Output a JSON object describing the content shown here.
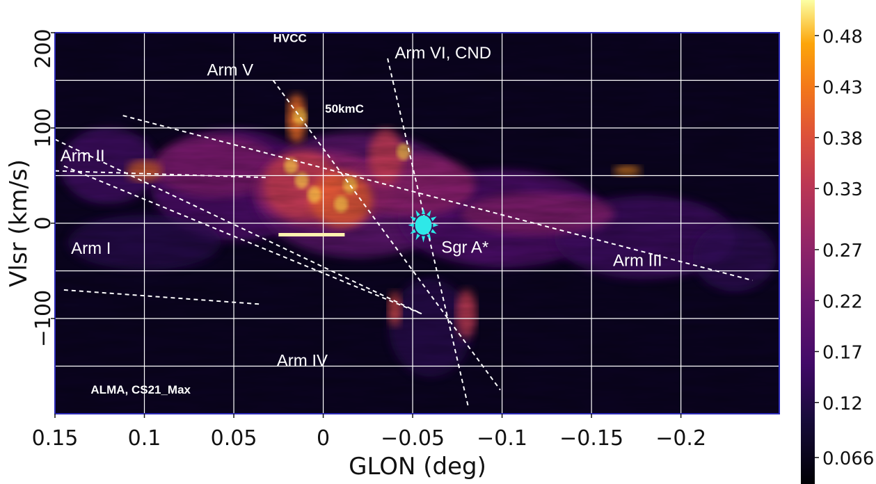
{
  "chart_data": {
    "type": "heatmap",
    "xlabel": "GLON (deg)",
    "ylabel": "Vlsr (km/s)",
    "xlim": [
      0.15,
      -0.255
    ],
    "ylim": [
      -200,
      200
    ],
    "x_ticks": [
      {
        "value": 0.15,
        "label": "0.15"
      },
      {
        "value": 0.1,
        "label": "0.1"
      },
      {
        "value": 0.05,
        "label": "0.05"
      },
      {
        "value": 0.0,
        "label": "0"
      },
      {
        "value": -0.05,
        "label": "−0.05"
      },
      {
        "value": -0.1,
        "label": "−0.1"
      },
      {
        "value": -0.15,
        "label": "−0.15"
      },
      {
        "value": -0.2,
        "label": "−0.2"
      }
    ],
    "y_ticks": [
      {
        "value": 200,
        "label": "200"
      },
      {
        "value": 100,
        "label": "100"
      },
      {
        "value": 0,
        "label": "0"
      },
      {
        "value": -100,
        "label": "−100"
      }
    ],
    "grid": true,
    "colormap": {
      "name": "inferno",
      "ticks": [
        "0.48",
        "0.43",
        "0.38",
        "0.33",
        "0.27",
        "0.22",
        "0.17",
        "0.12",
        "0.066"
      ],
      "tick_values": [
        0.48,
        0.43,
        0.38,
        0.33,
        0.27,
        0.22,
        0.17,
        0.12,
        0.066
      ],
      "range": [
        0.04,
        0.515
      ]
    },
    "arms": [
      {
        "name": "Arm I",
        "label": "Arm I",
        "line": [
          [
            0.145,
            -70
          ],
          [
            0.035,
            -85
          ]
        ]
      },
      {
        "name": "Arm II",
        "label": "Arm II",
        "line": [
          [
            0.15,
            55
          ],
          [
            0.032,
            48
          ]
        ]
      },
      {
        "name": "Arm II b",
        "label": "",
        "line": [
          [
            0.15,
            88
          ],
          [
            -0.055,
            -95
          ]
        ]
      },
      {
        "name": "Arm III",
        "label": "Arm III",
        "line": [
          [
            0.112,
            113
          ],
          [
            -0.24,
            -60
          ]
        ]
      },
      {
        "name": "Arm IV",
        "label": "Arm IV",
        "line": [
          [
            0.145,
            60
          ],
          [
            -0.055,
            -95
          ]
        ]
      },
      {
        "name": "Arm V",
        "label": "Arm V",
        "line": [
          [
            0.028,
            150
          ],
          [
            -0.099,
            -175
          ]
        ]
      },
      {
        "name": "Arm VI, CND",
        "label": "Arm VI, CND",
        "line": [
          [
            -0.036,
            173
          ],
          [
            -0.081,
            -192
          ]
        ]
      }
    ],
    "annotations": [
      {
        "text": "HVCC",
        "x": 0.028,
        "y": 190
      },
      {
        "text": "Arm V",
        "x": 0.065,
        "y": 155
      },
      {
        "text": "Arm VI, CND",
        "x": -0.04,
        "y": 173
      },
      {
        "text": "50kmC",
        "x": -0.001,
        "y": 116
      },
      {
        "text": "Arm II",
        "x": 0.147,
        "y": 65
      },
      {
        "text": "Arm I",
        "x": 0.141,
        "y": -32
      },
      {
        "text": "Arm IV",
        "x": 0.026,
        "y": -150
      },
      {
        "text": "Arm III",
        "x": -0.162,
        "y": -45
      },
      {
        "text": "Sgr A*",
        "x": -0.066,
        "y": -31
      },
      {
        "text": "ALMA, CS21_Max",
        "x": 0.13,
        "y": -179
      }
    ],
    "sgr_a_star": {
      "glon": -0.056,
      "vlsr": -2
    },
    "scale_bar": {
      "x": [
        0.025,
        -0.012
      ],
      "y": -12
    }
  },
  "colors": {
    "frame": "#2d2bb8",
    "grid": "#ffffff",
    "arm_lines": "#ffffff",
    "sgr_a_marker": "#2ee8e8",
    "background": "#000004"
  }
}
